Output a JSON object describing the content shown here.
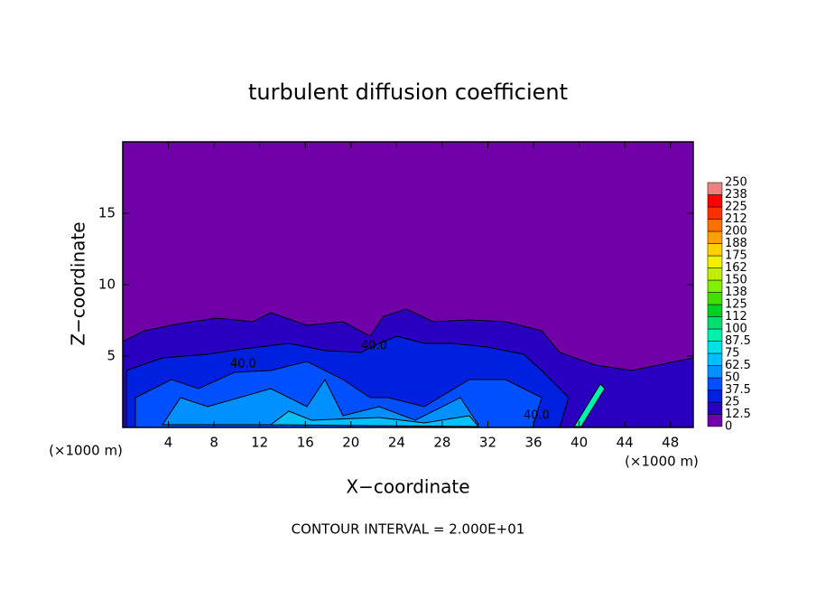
{
  "chart_data": {
    "type": "contour",
    "title": "turbulent diffusion coefficient",
    "x_label": "X−coordinate",
    "y_label": "Z−coordinate",
    "x_unit": "(×1000 m)",
    "x_unit_right": "(×1000 m)",
    "footer": "CONTOUR INTERVAL = 2.000E+01",
    "contour_labels": [
      "40.0",
      "40.0",
      "40.0"
    ],
    "xlim": [
      0,
      50
    ],
    "ylim": [
      0,
      20
    ],
    "xticks": [
      4,
      8,
      12,
      16,
      20,
      24,
      28,
      32,
      36,
      40,
      44,
      48
    ],
    "yticks": [
      5,
      10,
      15
    ],
    "colorbar": {
      "levels": [
        0,
        12.5,
        25,
        37.5,
        50,
        62.5,
        75,
        87.5,
        100,
        112,
        125,
        138,
        150,
        162,
        175,
        188,
        200,
        212,
        225,
        238,
        250
      ],
      "colors": [
        "#7000a8",
        "#2a00c0",
        "#0020e0",
        "#0050ff",
        "#0090ff",
        "#00c0ff",
        "#00e0e8",
        "#00f0b0",
        "#00e070",
        "#00d020",
        "#40e000",
        "#80f000",
        "#c0f000",
        "#f0f000",
        "#ffd000",
        "#ffa000",
        "#ff7000",
        "#ff3000",
        "#ff0000",
        "#f08080"
      ]
    }
  }
}
